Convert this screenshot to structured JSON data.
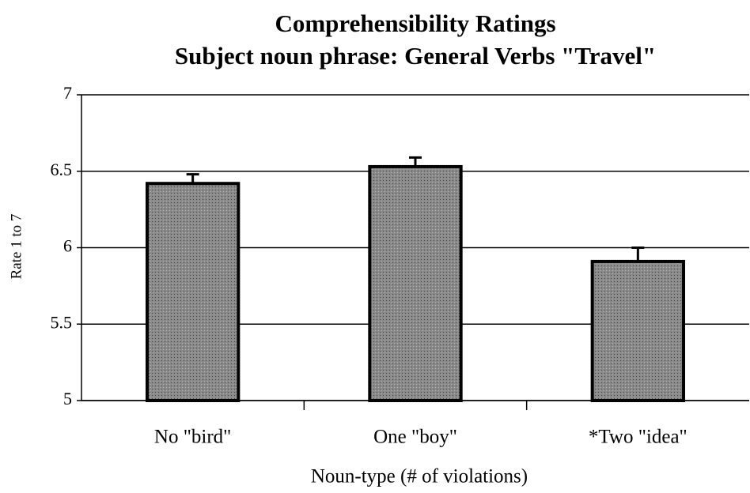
{
  "chart_data": {
    "type": "bar",
    "title": "Comprehensibility Ratings",
    "subtitle": "Subject noun phrase:  General Verbs \"Travel\"",
    "x_label": "Noun-type (# of violations)",
    "y_label": "Rate 1 to 7",
    "categories": [
      "No \"bird\"",
      "One \"boy\"",
      "*Two \"idea\""
    ],
    "values": [
      6.42,
      6.53,
      5.91
    ],
    "errors": [
      0.06,
      0.06,
      0.09
    ],
    "color": "#808080",
    "ylim": [
      5,
      7
    ],
    "yticks": [
      5,
      5.5,
      6,
      6.5,
      7
    ],
    "grid": true
  }
}
